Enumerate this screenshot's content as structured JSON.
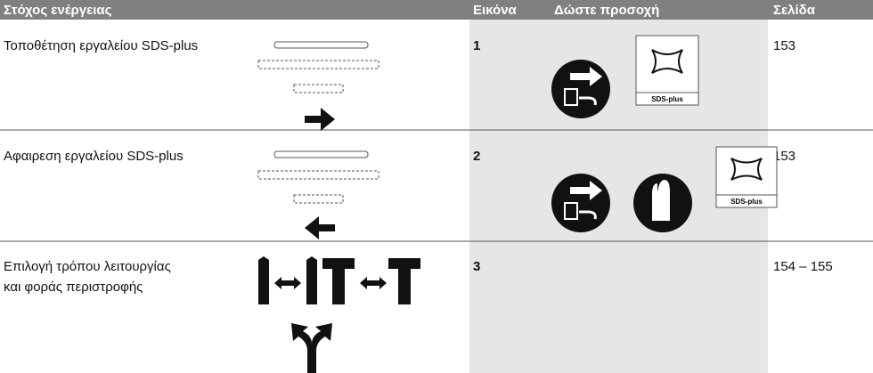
{
  "header": {
    "columns": [
      "Στόχος ενέργειας",
      "Εικόνα",
      "Δώστε προσοχή",
      "Σελίδα"
    ]
  },
  "table": {
    "rows": [
      {
        "action": [
          "Τοποθέτηση εργαλείου SDS-plus"
        ],
        "figure": "1",
        "attention_labels": [
          "SDS-plus"
        ],
        "page": "153"
      },
      {
        "action": [
          "Αφαιρεση εργαλείου SDS-plus"
        ],
        "figure": "2",
        "attention_labels": [
          "SDS-plus"
        ],
        "page": "153"
      },
      {
        "action": [
          "Επιλογή τρόπου λειτουργίας",
          "και φοράς περιστροφής"
        ],
        "figure": "3",
        "page": "154 – 155"
      }
    ]
  }
}
